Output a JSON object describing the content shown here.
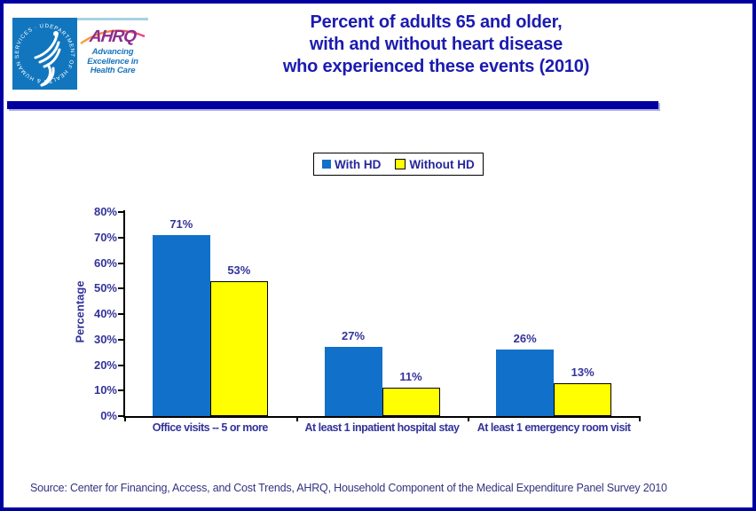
{
  "header": {
    "title_lines": [
      "Percent of adults 65 and older,",
      "with and without heart disease",
      "who experienced these events (2010)"
    ],
    "hhs_logo": {
      "ring_text": "DEPARTMENT OF HEALTH & HUMAN SERVICES · USA"
    },
    "ahrq_logo": {
      "acronym": "AHRQ",
      "tagline_lines": [
        "Advancing",
        "Excellence in",
        "Health Care"
      ]
    }
  },
  "colors": {
    "page_border": "#0000A0",
    "divider_bar": "#0000A0",
    "title_text": "#1B1BB0",
    "chart_text": "#33339B",
    "with_hd_blue": "#1170C9",
    "without_hd_yellow": "#FFFF00",
    "hhs_logo_blue": "#1176BE",
    "ahrq_purple": "#8E2D8E",
    "ahrq_tagline_blue": "#1B75BC"
  },
  "chart_data": {
    "type": "bar",
    "title": "",
    "categories": [
      "Office visits -- 5 or more",
      "At least 1 inpatient hospital stay",
      "At least 1 emergency room visit"
    ],
    "series": [
      {
        "name": "With HD",
        "color": "#1170C9",
        "values": [
          71,
          27,
          26
        ]
      },
      {
        "name": "Without HD",
        "color": "#FFFF00",
        "values": [
          53,
          11,
          13
        ]
      }
    ],
    "data_labels": [
      [
        "71%",
        "27%",
        "26%"
      ],
      [
        "53%",
        "11%",
        "13%"
      ]
    ],
    "xlabel": "",
    "ylabel": "Percentage",
    "ylim": [
      0,
      80
    ],
    "ytick_step": 10,
    "ytick_suffix": "%",
    "grid": false,
    "legend_position": "top-center"
  },
  "footer": {
    "source_text": "Source: Center for Financing, Access, and Cost Trends, AHRQ, Household Component of the Medical Expenditure Panel Survey 2010"
  }
}
